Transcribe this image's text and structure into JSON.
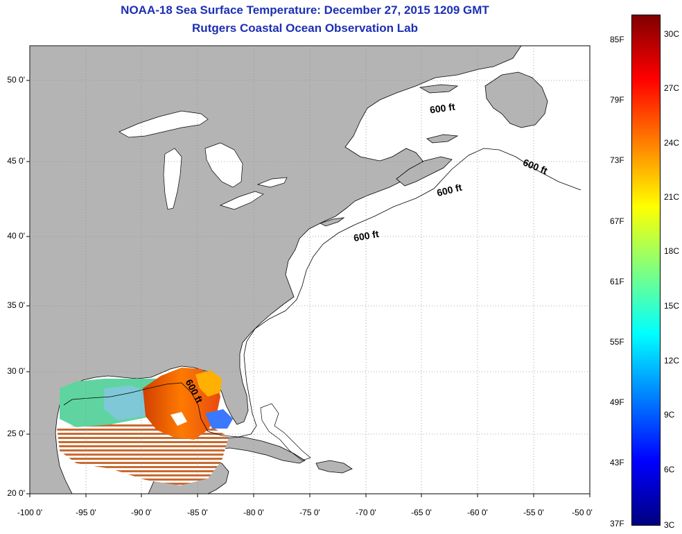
{
  "title": {
    "line1": "NOAA-18 Sea Surface Temperature:  December 27, 2015 1209 GMT",
    "line2": "Rutgers Coastal Ocean Observation Lab"
  },
  "y_ticks": [
    "50 0'",
    "45 0'",
    "40 0'",
    "35 0'",
    "30 0'",
    "25 0'",
    "20 0'"
  ],
  "x_ticks": [
    "-100 0'",
    "-95 0'",
    "-90 0'",
    "-85 0'",
    "-80 0'",
    "-75 0'",
    "-70 0'",
    "-65 0'",
    "-60 0'",
    "-55 0'",
    "-50 0'"
  ],
  "contour_label": "600 ft",
  "colorbar": {
    "fahrenheit": [
      "85F",
      "79F",
      "73F",
      "67F",
      "61F",
      "55F",
      "49F",
      "43F",
      "37F"
    ],
    "celsius": [
      "30C",
      "27C",
      "24C",
      "21C",
      "18C",
      "15C",
      "12C",
      "9C",
      "6C",
      "3C"
    ],
    "colors": [
      "#800000",
      "#ff0000",
      "#ff7f00",
      "#ffff00",
      "#7fff7f",
      "#00ffff",
      "#007fff",
      "#0000ff",
      "#000080"
    ]
  },
  "colors": {
    "land": "#b4b4b4",
    "title": "#1c2fb4",
    "ocean": "#ffffff"
  }
}
